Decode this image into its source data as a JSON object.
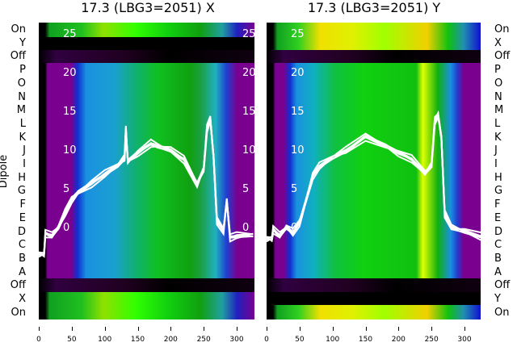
{
  "chart_data": [
    {
      "type": "heatmap",
      "title": "17.3 (LBG3=2051) X",
      "row_labels": [
        "On",
        "Y",
        "Off",
        "P",
        "O",
        "N",
        "M",
        "L",
        "K",
        "J",
        "I",
        "H",
        "G",
        "F",
        "E",
        "D",
        "C",
        "B",
        "A",
        "Off",
        "X",
        "On"
      ],
      "x_ticks": [
        "0",
        "50",
        "100",
        "150",
        "200",
        "250",
        "300"
      ],
      "xlim": [
        0,
        325
      ],
      "inner_y_ticks": [
        "25",
        "20",
        "15",
        "10",
        "5",
        "0"
      ],
      "inner_ylim": [
        -3,
        26
      ],
      "ylabel": "Dipole",
      "trace": {
        "x": [
          0,
          8,
          10,
          20,
          30,
          40,
          50,
          60,
          80,
          100,
          120,
          130,
          132,
          135,
          150,
          170,
          180,
          200,
          220,
          240,
          250,
          255,
          260,
          265,
          270,
          280,
          285,
          290,
          300,
          325
        ],
        "y": [
          -3,
          -3,
          -0.5,
          -1,
          0,
          2,
          4,
          5,
          6,
          7,
          8,
          9,
          13,
          9,
          10,
          11,
          10.5,
          10,
          9,
          6,
          8,
          13,
          14,
          9,
          1,
          0,
          4,
          -1,
          -1,
          -1
        ]
      }
    },
    {
      "type": "heatmap",
      "title": "17.3 (LBG3=2051) Y",
      "row_labels": [
        "On",
        "X",
        "Off",
        "P",
        "O",
        "N",
        "M",
        "L",
        "K",
        "J",
        "I",
        "H",
        "G",
        "F",
        "E",
        "D",
        "C",
        "B",
        "A",
        "Off",
        "Y",
        "On"
      ],
      "x_ticks": [
        "0",
        "50",
        "100",
        "150",
        "200",
        "250",
        "300"
      ],
      "xlim": [
        0,
        325
      ],
      "inner_y_ticks": [
        "25",
        "20",
        "15",
        "10",
        "5",
        "0"
      ],
      "inner_ylim": [
        -3,
        26
      ],
      "trace": {
        "x": [
          0,
          8,
          10,
          20,
          30,
          40,
          50,
          60,
          70,
          80,
          100,
          120,
          150,
          180,
          200,
          220,
          240,
          250,
          255,
          260,
          265,
          270,
          280,
          300,
          325
        ],
        "y": [
          -1,
          -1,
          0,
          -1,
          0,
          -0.5,
          1,
          4,
          7,
          8,
          9,
          10,
          12,
          11,
          10,
          9,
          7,
          8,
          14,
          15,
          12,
          2,
          0,
          -0.5,
          -1
        ]
      }
    }
  ]
}
